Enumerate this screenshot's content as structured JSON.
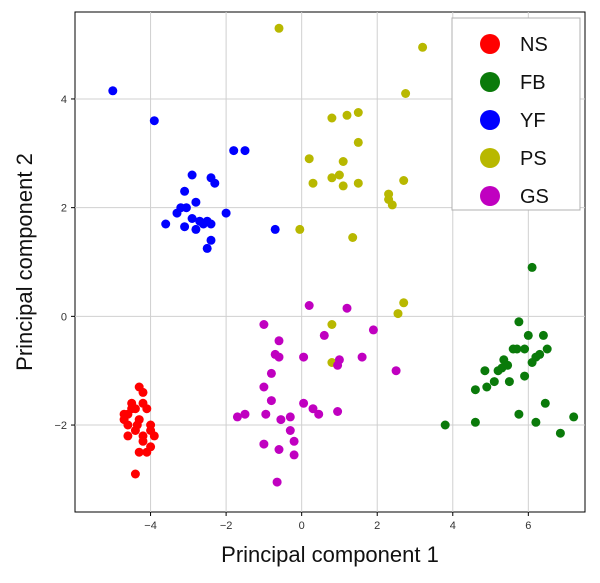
{
  "chart_data": {
    "type": "scatter",
    "title": "",
    "xlabel": "Principal component 1",
    "ylabel": "Principal component 2",
    "xlim": [
      -6,
      7.5
    ],
    "ylim": [
      -3.6,
      5.6
    ],
    "xticks": [
      -4,
      -2,
      0,
      2,
      4,
      6
    ],
    "yticks": [
      -2,
      0,
      2,
      4
    ],
    "grid": true,
    "legend_position": "top-right",
    "series": [
      {
        "name": "NS",
        "color": "#ff0000",
        "points": [
          [
            -4.5,
            -1.7
          ],
          [
            -4.6,
            -1.8
          ],
          [
            -4.3,
            -1.3
          ],
          [
            -4.2,
            -1.4
          ],
          [
            -4.4,
            -1.7
          ],
          [
            -4.3,
            -1.9
          ],
          [
            -4.6,
            -2.0
          ],
          [
            -4.1,
            -1.7
          ],
          [
            -4.4,
            -2.1
          ],
          [
            -4.2,
            -2.2
          ],
          [
            -4.0,
            -2.1
          ],
          [
            -3.9,
            -2.2
          ],
          [
            -4.2,
            -2.3
          ],
          [
            -4.0,
            -2.4
          ],
          [
            -4.3,
            -2.5
          ],
          [
            -4.1,
            -2.5
          ],
          [
            -4.4,
            -2.9
          ],
          [
            -4.6,
            -2.2
          ],
          [
            -4.7,
            -1.8
          ],
          [
            -4.7,
            -1.9
          ],
          [
            -4.2,
            -1.6
          ],
          [
            -4.0,
            -2.0
          ],
          [
            -4.5,
            -1.6
          ],
          [
            -4.35,
            -2.0
          ]
        ]
      },
      {
        "name": "FB",
        "color": "#0a7a0a",
        "points": [
          [
            3.8,
            -2.0
          ],
          [
            4.6,
            -1.95
          ],
          [
            4.6,
            -1.35
          ],
          [
            4.9,
            -1.3
          ],
          [
            4.85,
            -1.0
          ],
          [
            5.2,
            -1.0
          ],
          [
            5.1,
            -1.2
          ],
          [
            5.3,
            -0.95
          ],
          [
            5.35,
            -0.8
          ],
          [
            5.45,
            -0.9
          ],
          [
            5.6,
            -0.6
          ],
          [
            5.7,
            -0.6
          ],
          [
            5.75,
            -0.1
          ],
          [
            5.9,
            -0.6
          ],
          [
            6.1,
            -0.85
          ],
          [
            6.2,
            -0.75
          ],
          [
            6.3,
            -0.7
          ],
          [
            6.4,
            -0.35
          ],
          [
            6.5,
            -0.6
          ],
          [
            6.0,
            -0.35
          ],
          [
            6.1,
            0.9
          ],
          [
            5.75,
            -1.8
          ],
          [
            6.2,
            -1.95
          ],
          [
            6.45,
            -1.6
          ],
          [
            6.85,
            -2.15
          ],
          [
            7.2,
            -1.85
          ],
          [
            5.9,
            -1.1
          ],
          [
            5.5,
            -1.2
          ]
        ]
      },
      {
        "name": "YF",
        "color": "#0000ff",
        "points": [
          [
            -5.0,
            4.15
          ],
          [
            -3.9,
            3.6
          ],
          [
            -1.8,
            3.05
          ],
          [
            -1.5,
            3.05
          ],
          [
            -2.9,
            2.6
          ],
          [
            -2.4,
            2.55
          ],
          [
            -2.3,
            2.45
          ],
          [
            -3.1,
            2.3
          ],
          [
            -2.8,
            2.1
          ],
          [
            -3.2,
            2.0
          ],
          [
            -3.3,
            1.9
          ],
          [
            -2.0,
            1.9
          ],
          [
            -2.9,
            1.8
          ],
          [
            -2.7,
            1.75
          ],
          [
            -2.6,
            1.7
          ],
          [
            -2.5,
            1.75
          ],
          [
            -2.4,
            1.7
          ],
          [
            -3.6,
            1.7
          ],
          [
            -3.1,
            1.65
          ],
          [
            -2.8,
            1.6
          ],
          [
            -2.4,
            1.4
          ],
          [
            -2.5,
            1.25
          ],
          [
            -0.7,
            1.6
          ],
          [
            -3.05,
            2.0
          ]
        ]
      },
      {
        "name": "PS",
        "color": "#b8b800",
        "points": [
          [
            -0.6,
            5.3
          ],
          [
            3.2,
            4.95
          ],
          [
            2.75,
            4.1
          ],
          [
            1.5,
            3.75
          ],
          [
            1.2,
            3.7
          ],
          [
            0.8,
            3.65
          ],
          [
            1.5,
            3.2
          ],
          [
            0.2,
            2.9
          ],
          [
            1.1,
            2.85
          ],
          [
            1.0,
            2.6
          ],
          [
            0.8,
            2.55
          ],
          [
            0.3,
            2.45
          ],
          [
            1.1,
            2.4
          ],
          [
            1.5,
            2.45
          ],
          [
            2.7,
            2.5
          ],
          [
            2.3,
            2.25
          ],
          [
            2.3,
            2.15
          ],
          [
            2.4,
            2.05
          ],
          [
            -0.05,
            1.6
          ],
          [
            1.35,
            1.45
          ],
          [
            2.7,
            0.25
          ],
          [
            2.55,
            0.05
          ],
          [
            0.8,
            -0.15
          ],
          [
            0.8,
            -0.85
          ]
        ]
      },
      {
        "name": "GS",
        "color": "#c000c0",
        "points": [
          [
            0.2,
            0.2
          ],
          [
            1.2,
            0.15
          ],
          [
            -0.6,
            -0.45
          ],
          [
            -1.0,
            -0.15
          ],
          [
            0.6,
            -0.35
          ],
          [
            1.9,
            -0.25
          ],
          [
            -0.7,
            -0.7
          ],
          [
            0.05,
            -0.75
          ],
          [
            -0.6,
            -0.75
          ],
          [
            1.0,
            -0.8
          ],
          [
            1.6,
            -0.75
          ],
          [
            2.5,
            -1.0
          ],
          [
            0.95,
            -0.9
          ],
          [
            -0.8,
            -1.05
          ],
          [
            -1.0,
            -1.3
          ],
          [
            -0.8,
            -1.55
          ],
          [
            0.05,
            -1.6
          ],
          [
            0.3,
            -1.7
          ],
          [
            -0.95,
            -1.8
          ],
          [
            -0.55,
            -1.9
          ],
          [
            -0.3,
            -1.85
          ],
          [
            0.45,
            -1.8
          ],
          [
            0.95,
            -1.75
          ],
          [
            -1.5,
            -1.8
          ],
          [
            -1.7,
            -1.85
          ],
          [
            -0.3,
            -2.1
          ],
          [
            -1.0,
            -2.35
          ],
          [
            -0.2,
            -2.3
          ],
          [
            -0.6,
            -2.45
          ],
          [
            -0.2,
            -2.55
          ],
          [
            -0.65,
            -3.05
          ]
        ]
      }
    ]
  }
}
